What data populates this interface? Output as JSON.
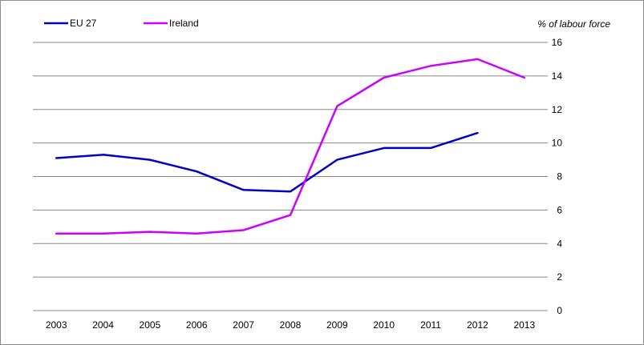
{
  "chart_data": {
    "type": "line",
    "title": "",
    "xlabel": "",
    "ylabel": "% of labour force",
    "categories": [
      "2003",
      "2004",
      "2005",
      "2006",
      "2007",
      "2008",
      "2009",
      "2010",
      "2011",
      "2012",
      "2013"
    ],
    "ylim": [
      0,
      16
    ],
    "yticks": [
      0,
      2,
      4,
      6,
      8,
      10,
      12,
      14,
      16
    ],
    "grid": true,
    "legend_position": "top-left",
    "series": [
      {
        "name": "EU 27",
        "color": "#0000cc",
        "values": [
          9.1,
          9.3,
          9.0,
          8.3,
          7.2,
          7.1,
          9.0,
          9.7,
          9.7,
          10.6,
          null
        ]
      },
      {
        "name": "Ireland",
        "color": "#cc00ff",
        "values": [
          4.6,
          4.6,
          4.7,
          4.6,
          4.8,
          5.7,
          12.2,
          13.9,
          14.6,
          15.0,
          13.9
        ]
      }
    ]
  }
}
